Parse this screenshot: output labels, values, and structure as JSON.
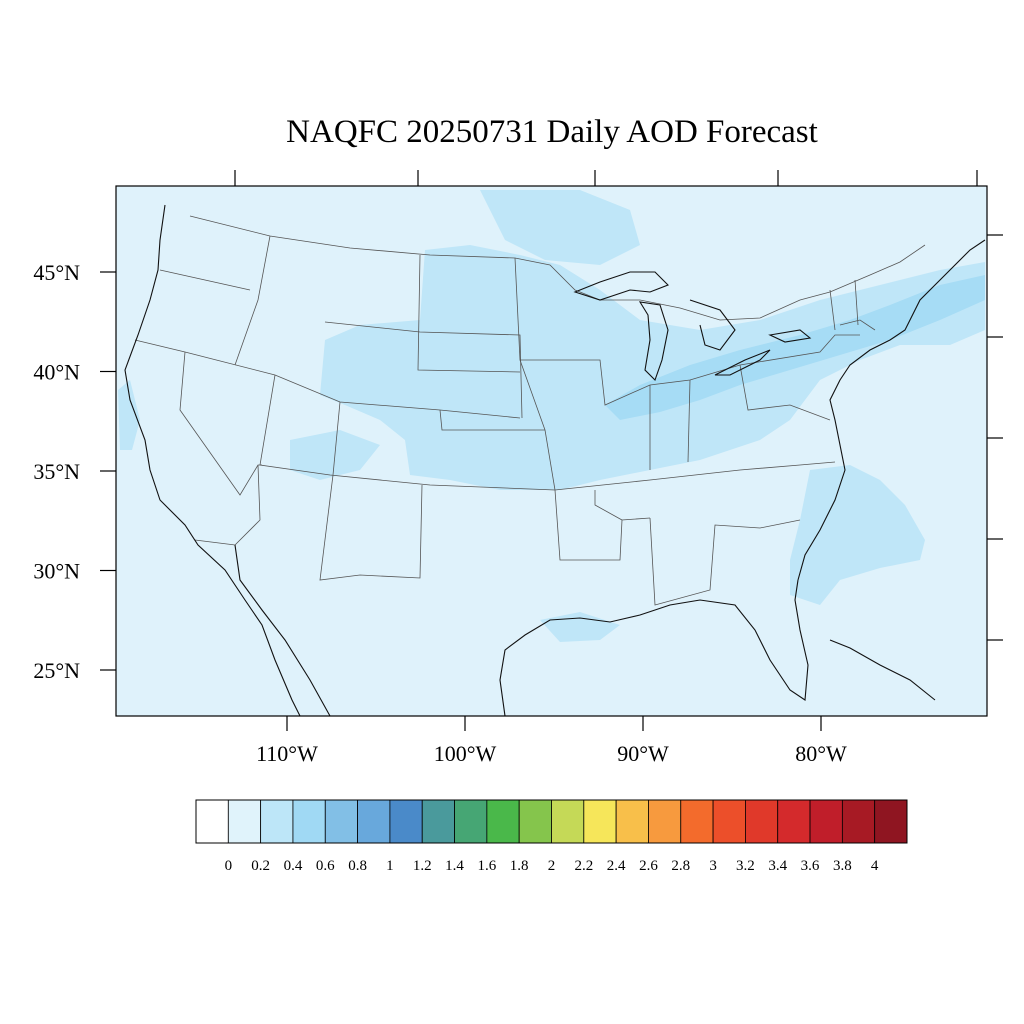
{
  "title": "NAQFC 20250731 Daily AOD Forecast",
  "map": {
    "lat_labels": [
      {
        "lat": 45,
        "label": "45°N"
      },
      {
        "lat": 40,
        "label": "40°N"
      },
      {
        "lat": 35,
        "label": "35°N"
      },
      {
        "lat": 30,
        "label": "30°N"
      },
      {
        "lat": 25,
        "label": "25°N"
      }
    ],
    "lon_labels": [
      {
        "lon": -110,
        "label": "110°W"
      },
      {
        "lon": -100,
        "label": "100°W"
      },
      {
        "lon": -90,
        "label": "90°W"
      },
      {
        "lon": -80,
        "label": "80°W"
      }
    ],
    "colors": {
      "background": "#dff2fb",
      "level_0_4": "#bfe6f8",
      "level_0_6": "#a6dcf5",
      "boundary": "#555555",
      "coast": "#111111"
    }
  },
  "colorbar": {
    "colors": [
      "#ffffff",
      "#e0f3fb",
      "#bde6f8",
      "#a0d9f4",
      "#82bfe6",
      "#68a8dc",
      "#4a8ac9",
      "#4a9a9c",
      "#46a674",
      "#4ab84a",
      "#85c54c",
      "#c5d957",
      "#f6e65a",
      "#f8bf4a",
      "#f79a3e",
      "#f36b2c",
      "#ec4f2a",
      "#e0392a",
      "#d42a2c",
      "#c01e2a",
      "#a71a24",
      "#8f1521"
    ],
    "labels": [
      "0",
      "0.2",
      "0.4",
      "0.6",
      "0.8",
      "1",
      "1.2",
      "1.4",
      "1.6",
      "1.8",
      "2",
      "2.2",
      "2.4",
      "2.6",
      "2.8",
      "3",
      "3.2",
      "3.4",
      "3.6",
      "3.8",
      "4"
    ]
  }
}
